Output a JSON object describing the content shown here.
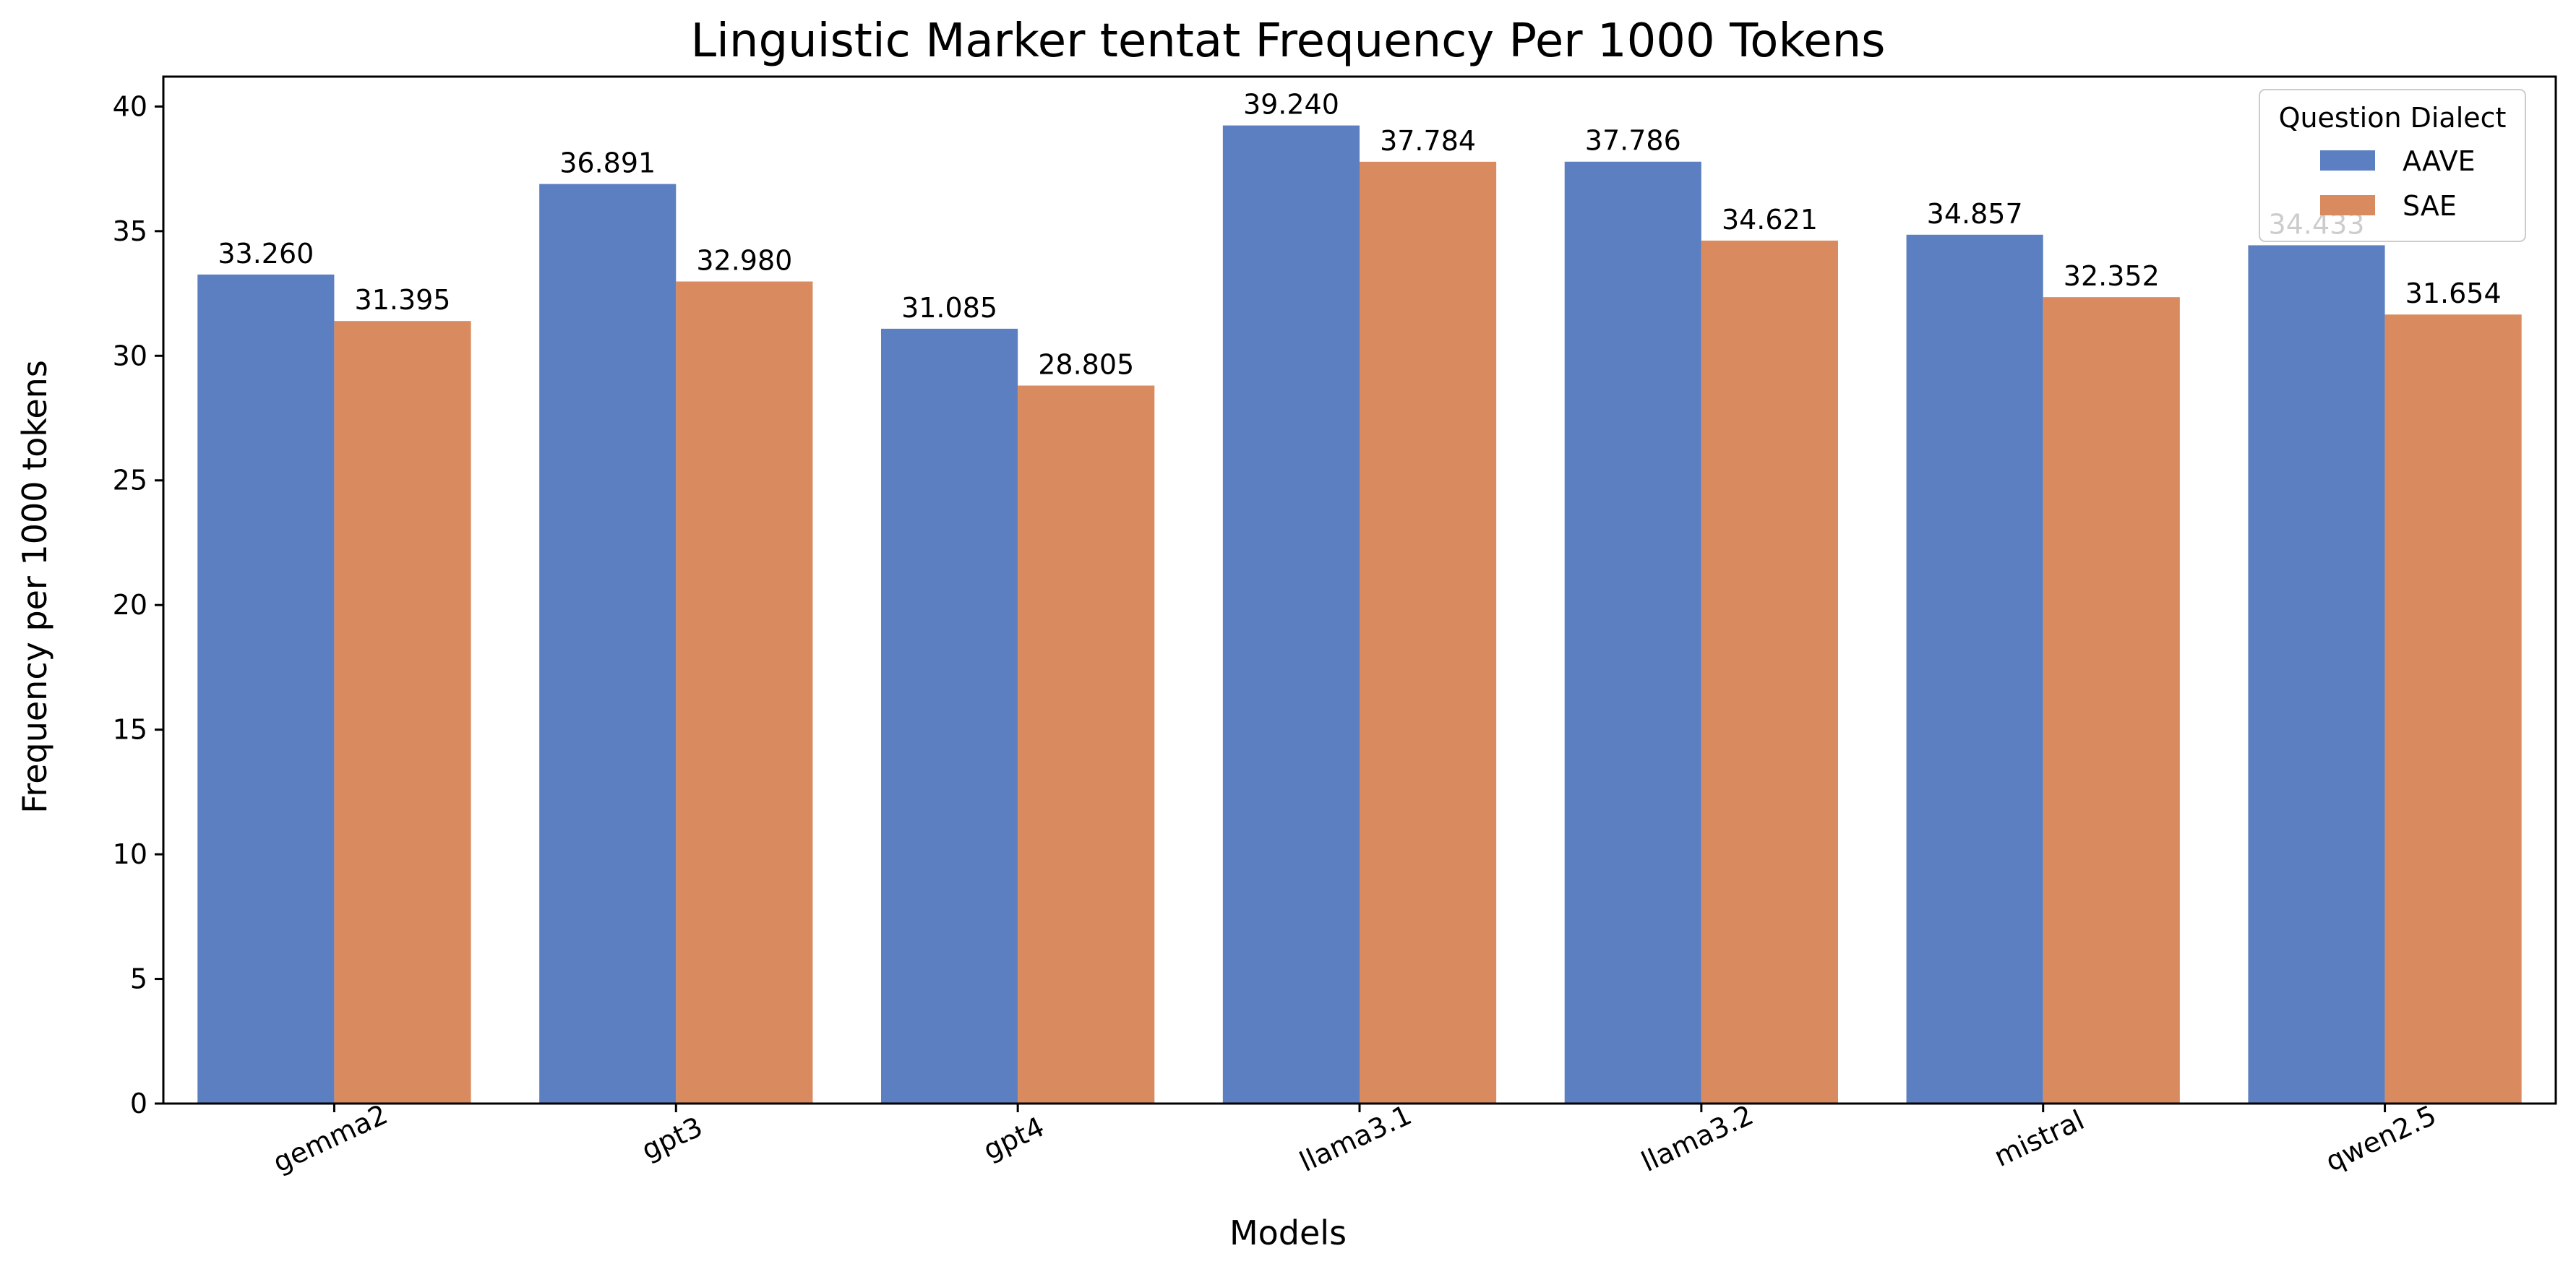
{
  "chart_data": {
    "type": "bar",
    "title": "Linguistic Marker tentat Frequency Per 1000 Tokens",
    "xlabel": "Models",
    "ylabel": "Frequency per 1000 tokens",
    "categories": [
      "gemma2",
      "gpt3",
      "gpt4",
      "llama3.1",
      "llama3.2",
      "mistral",
      "qwen2.5"
    ],
    "series": [
      {
        "name": "AAVE",
        "color": "#5b7fc0",
        "values": [
          33.26,
          36.891,
          31.085,
          39.24,
          37.786,
          34.857,
          34.433
        ],
        "labels": [
          "33.260",
          "36.891",
          "31.085",
          "39.240",
          "37.786",
          "34.857",
          "34.433"
        ]
      },
      {
        "name": "SAE",
        "color": "#d98b5f",
        "values": [
          31.395,
          32.98,
          28.805,
          37.784,
          34.621,
          32.352,
          31.654
        ],
        "labels": [
          "31.395",
          "32.980",
          "28.805",
          "37.784",
          "34.621",
          "32.352",
          "31.654"
        ]
      }
    ],
    "ylim": [
      0,
      41.2
    ],
    "yticks": [
      0,
      5,
      10,
      15,
      20,
      25,
      30,
      35,
      40
    ],
    "tick_rotation_deg": -25,
    "grid": false,
    "legend": {
      "title": "Question Dialect",
      "placement": "top-right"
    }
  }
}
